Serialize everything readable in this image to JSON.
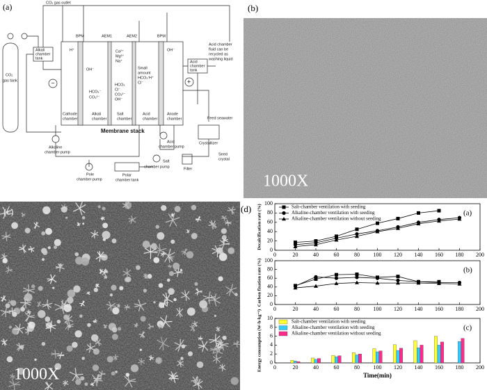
{
  "panels": {
    "a": "(a)",
    "b": "(b)",
    "c": "(c)",
    "d": "(d)"
  },
  "images": {
    "b_magnification": "1000X",
    "c_magnification": "1000X"
  },
  "diagram": {
    "labels": [
      "CO₂ gas outlet",
      "BPM",
      "AEM1",
      "AEM2",
      "BPM",
      "CO₂",
      "gas tank",
      "Alkali",
      "chamber",
      "tank",
      "Acid",
      "chamber",
      "tank",
      "Acid chamber",
      "fluid can be",
      "recycled as",
      "washing liquid",
      "Cathode",
      "chamber",
      "Alkali",
      "chamber",
      "Salt",
      "chamber",
      "Acid",
      "chamber",
      "Anode",
      "chamber",
      "Membrane stack",
      "H⁺",
      "OH⁻",
      "HCO₃⁻",
      "CO₃²⁻",
      "Ca²⁺",
      "Mg²⁺",
      "Na⁺",
      "HCO₃",
      "Cl⁻",
      "CO₃²⁻",
      "OH⁻",
      "Small",
      "amount",
      "HCO₃⁻",
      "Cl⁻",
      "H⁺",
      "OH⁻",
      "−",
      "+",
      "Feed seawater",
      "Crystallizer",
      "Seed",
      "crystal",
      "Alkaline",
      "chamber pump",
      "Acid",
      "chamber pump",
      "Salt",
      "chamber pump",
      "Filter",
      "Pole",
      "chamber  pump",
      "Polar",
      "chamber tank"
    ]
  },
  "chart_data": [
    {
      "type": "line",
      "label": "(a)",
      "ylabel": "Decalcification rate (%)",
      "xlim": [
        0,
        200
      ],
      "xticks": [
        0,
        20,
        40,
        60,
        80,
        100,
        120,
        140,
        160,
        180,
        200
      ],
      "ylim": [
        0,
        100
      ],
      "yticks": [
        0,
        20,
        40,
        60,
        80,
        100
      ],
      "legend": "upper left",
      "series": [
        {
          "name": "Salt-chamber ventilation with seeding",
          "color": "#000000",
          "marker": "square",
          "x": [
            20,
            40,
            60,
            80,
            100,
            120,
            140,
            160
          ],
          "values": [
            17,
            20,
            30,
            45,
            58,
            68,
            80,
            85
          ]
        },
        {
          "name": "Alkaline-chamber ventilation with seeding",
          "color": "#000000",
          "marker": "circle",
          "x": [
            20,
            40,
            60,
            80,
            100,
            120,
            140,
            160,
            180
          ],
          "values": [
            12,
            16,
            26,
            35,
            42,
            50,
            60,
            66,
            70
          ]
        },
        {
          "name": "Alkaline-chamber ventilation without seeding",
          "color": "#000000",
          "marker": "triangle",
          "x": [
            20,
            40,
            60,
            80,
            100,
            120,
            140,
            160,
            180
          ],
          "values": [
            8,
            12,
            22,
            30,
            40,
            47,
            57,
            63,
            67
          ]
        }
      ]
    },
    {
      "type": "line",
      "label": "(b)",
      "ylabel": "Carbon fixation rate (%)",
      "xlim": [
        0,
        200
      ],
      "xticks": [
        0,
        20,
        40,
        60,
        80,
        100,
        120,
        140,
        160,
        180,
        200
      ],
      "ylim": [
        0,
        100
      ],
      "yticks": [
        0,
        20,
        40,
        60,
        80,
        100
      ],
      "series": [
        {
          "name": "Salt-chamber ventilation with seeding",
          "color": "#000000",
          "marker": "square",
          "x": [
            20,
            40,
            60,
            80,
            100,
            120,
            140,
            160
          ],
          "values": [
            43,
            58,
            68,
            69,
            62,
            64,
            52,
            52
          ]
        },
        {
          "name": "Alkaline-chamber ventilation with seeding",
          "color": "#000000",
          "marker": "circle",
          "x": [
            20,
            40,
            60,
            80,
            100,
            120,
            140,
            160,
            180
          ],
          "values": [
            42,
            63,
            60,
            62,
            60,
            55,
            52,
            50,
            50
          ]
        },
        {
          "name": "Alkaline-chamber ventilation without seeding",
          "color": "#000000",
          "marker": "triangle",
          "x": [
            20,
            40,
            60,
            80,
            100,
            120,
            140,
            160,
            180
          ],
          "values": [
            38,
            42,
            48,
            50,
            49,
            49,
            49,
            48,
            47
          ]
        }
      ]
    },
    {
      "type": "bar",
      "label": "(c)",
      "ylabel": "Energy consumption (W·h·kg⁻¹)",
      "xlabel": "Time(min)",
      "xlim": [
        0,
        200
      ],
      "xticks": [
        0,
        20,
        40,
        60,
        80,
        100,
        120,
        140,
        160,
        180,
        200
      ],
      "ylim": [
        0,
        10
      ],
      "yticks": [
        0,
        2,
        4,
        6,
        8,
        10
      ],
      "legend": "upper left",
      "series": [
        {
          "name": "Salt-chamber ventilation with seeding",
          "color": "#ffff33",
          "x": [
            20,
            40,
            60,
            80,
            100,
            120,
            140,
            160
          ],
          "values": [
            0.6,
            1.1,
            1.7,
            2.3,
            3.2,
            4.1,
            5.0,
            6.0
          ]
        },
        {
          "name": "Alkaline-chamber ventilation with seeding",
          "color": "#33ccff",
          "x": [
            20,
            40,
            60,
            80,
            100,
            120,
            140,
            160,
            180
          ],
          "values": [
            0.4,
            0.8,
            1.4,
            1.8,
            2.5,
            2.8,
            3.4,
            4.0,
            4.8
          ]
        },
        {
          "name": "Alkaline-chamber ventilation without seeding",
          "color": "#ff2a8a",
          "x": [
            20,
            40,
            60,
            80,
            100,
            120,
            140,
            160,
            180
          ],
          "values": [
            0.3,
            1.0,
            1.6,
            2.0,
            2.7,
            3.3,
            4.0,
            4.7,
            5.5
          ]
        }
      ]
    }
  ]
}
